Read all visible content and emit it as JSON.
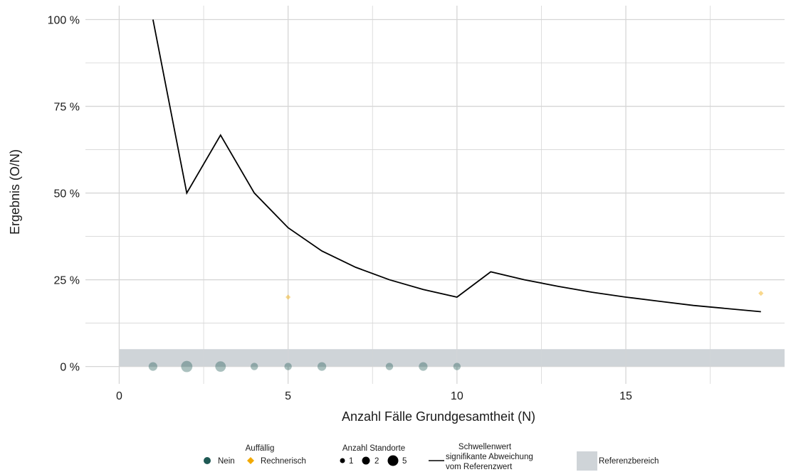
{
  "chart_data": {
    "type": "scatter",
    "xlabel": "Anzahl Fälle Grundgesamtheit (N)",
    "ylabel": "Ergebnis (O/N)",
    "xlim": [
      -1,
      19.7
    ],
    "ylim": [
      -0.05,
      1.04
    ],
    "x_ticks": [
      0,
      5,
      10,
      15
    ],
    "x_tick_labels": [
      "0",
      "5",
      "10",
      "15"
    ],
    "y_ticks": [
      0,
      0.25,
      0.5,
      0.75,
      1.0
    ],
    "y_tick_labels": [
      "0 %",
      "25 %",
      "50 %",
      "75 %",
      "100 %"
    ],
    "grid": true,
    "reference_range": [
      0,
      0.05
    ],
    "threshold_line": {
      "x": [
        1,
        2,
        3,
        4,
        5,
        6,
        7,
        8,
        9,
        10,
        11,
        12,
        13,
        14,
        15,
        16,
        17,
        18,
        19
      ],
      "y": [
        1.0,
        0.5,
        0.667,
        0.5,
        0.4,
        0.333,
        0.286,
        0.25,
        0.222,
        0.2,
        0.273,
        0.25,
        0.231,
        0.214,
        0.2,
        0.188,
        0.176,
        0.167,
        0.158
      ]
    },
    "points_nein": [
      {
        "x": 1,
        "y": 0,
        "count": 2
      },
      {
        "x": 2,
        "y": 0,
        "count": 5
      },
      {
        "x": 3,
        "y": 0,
        "count": 4
      },
      {
        "x": 4,
        "y": 0,
        "count": 1
      },
      {
        "x": 5,
        "y": 0,
        "count": 1
      },
      {
        "x": 6,
        "y": 0,
        "count": 2
      },
      {
        "x": 8,
        "y": 0,
        "count": 1
      },
      {
        "x": 9,
        "y": 0,
        "count": 2
      },
      {
        "x": 10,
        "y": 0,
        "count": 1
      }
    ],
    "points_rechnerisch": [
      {
        "x": 5,
        "y": 0.2,
        "count": 1
      },
      {
        "x": 19,
        "y": 0.211,
        "count": 1
      }
    ],
    "colors": {
      "nein": "#1f5954",
      "rechnerisch": "#f2a900",
      "reference": "#cfd4d8",
      "line": "#000000",
      "grid": "#d6d6d6"
    },
    "legend": {
      "placement": "bottom",
      "auffaellig_title": "Auffällig",
      "auffaellig_items": [
        "Nein",
        "Rechnerisch"
      ],
      "anzahl_title": "Anzahl Standorte",
      "anzahl_items": [
        "1",
        "2",
        "5"
      ],
      "schwelle_title": "Schwellenwert",
      "schwelle_line1": "signifikante Abweichung",
      "schwelle_line2": "vom Referenzwert",
      "referenz_label": "Referenzbereich"
    }
  }
}
